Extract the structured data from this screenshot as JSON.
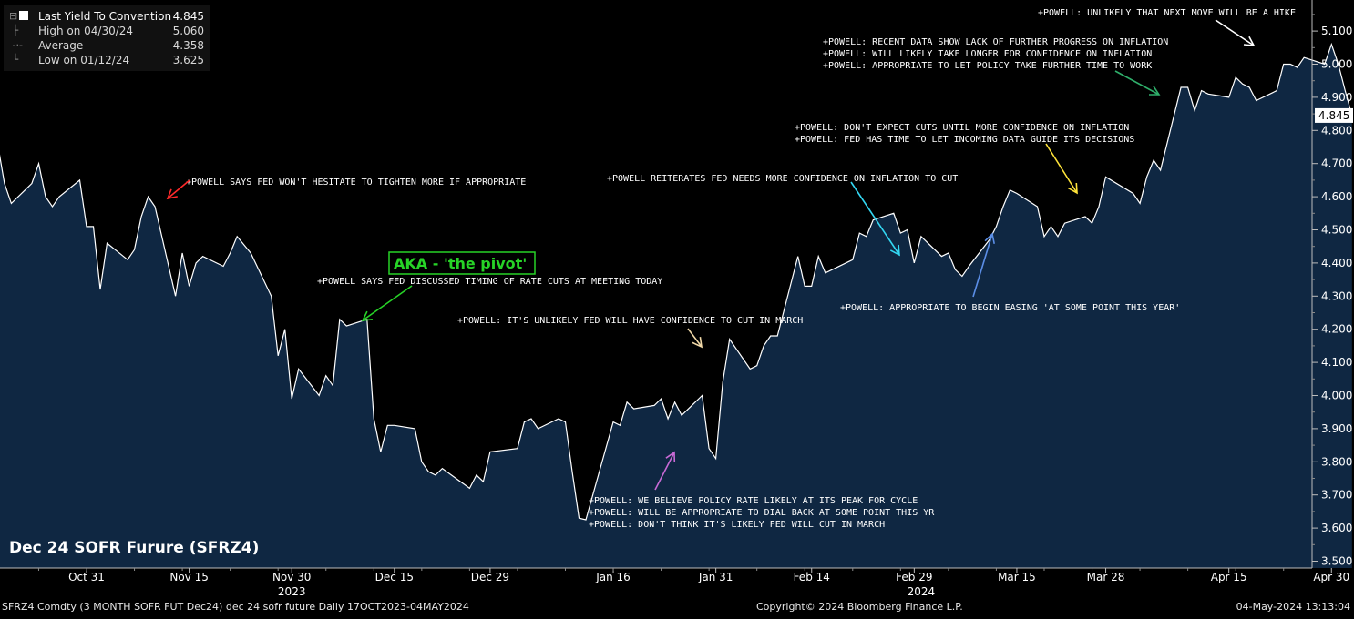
{
  "legend": {
    "main": {
      "label": "Last Yield To Convention",
      "value": "4.845"
    },
    "high": {
      "label": "High on 04/30/24",
      "value": "5.060"
    },
    "average": {
      "label": "Average",
      "value": "4.358"
    },
    "low": {
      "label": "Low on 01/12/24",
      "value": "3.625"
    }
  },
  "chart_title": "Dec 24 SOFR Furure (SFRZ4)",
  "footer": {
    "left": "SFRZ4 Comdty (3 MONTH SOFR FUT  Dec24) dec 24 sofr future  Daily 17OCT2023-04MAY2024",
    "center": "Copyright© 2024 Bloomberg Finance L.P.",
    "right": "04-May-2024 13:13:04"
  },
  "colors": {
    "background": "#000000",
    "area_fill": "#0f2742",
    "line": "#ffffff",
    "pivot_green": "#27d327"
  },
  "chart_data": {
    "type": "area",
    "title": "Dec 24 SOFR Furure (SFRZ4)",
    "y_tick_labels": [
      "3.500",
      "3.600",
      "3.700",
      "3.800",
      "3.900",
      "4.000",
      "4.100",
      "4.200",
      "4.300",
      "4.400",
      "4.500",
      "4.600",
      "4.700",
      "4.800",
      "4.900",
      "5.000",
      "5.100"
    ],
    "ylim": [
      3.47,
      5.27
    ],
    "x_tick_labels": [
      "Oct 31",
      "Nov 15",
      "Nov 30",
      "Dec 15",
      "Dec 29",
      "Jan 16",
      "Jan 31",
      "Feb 14",
      "Feb 29",
      "Mar 15",
      "Mar 28",
      "Apr 15",
      "Apr 30"
    ],
    "x_tick_dates": [
      "2023-10-31",
      "2023-11-15",
      "2023-11-30",
      "2023-12-15",
      "2023-12-29",
      "2024-01-16",
      "2024-01-31",
      "2024-02-14",
      "2024-02-29",
      "2024-03-15",
      "2024-03-28",
      "2024-04-15",
      "2024-04-30"
    ],
    "year_labels": [
      {
        "label": "2023",
        "date": "2023-11-30"
      },
      {
        "label": "2024",
        "date": "2024-03-01"
      }
    ],
    "last_value_label": "4.845",
    "grid": false,
    "series": [
      {
        "values": [
          [
            "2023-10-16",
            4.79
          ],
          [
            "2023-10-17",
            4.81
          ],
          [
            "2023-10-18",
            4.76
          ],
          [
            "2023-10-19",
            4.64
          ],
          [
            "2023-10-20",
            4.58
          ],
          [
            "2023-10-23",
            4.64
          ],
          [
            "2023-10-24",
            4.7
          ],
          [
            "2023-10-25",
            4.6
          ],
          [
            "2023-10-26",
            4.57
          ],
          [
            "2023-10-27",
            4.6
          ],
          [
            "2023-10-30",
            4.65
          ],
          [
            "2023-10-31",
            4.51
          ],
          [
            "2023-11-01",
            4.51
          ],
          [
            "2023-11-02",
            4.32
          ],
          [
            "2023-11-03",
            4.46
          ],
          [
            "2023-11-06",
            4.41
          ],
          [
            "2023-11-07",
            4.44
          ],
          [
            "2023-11-08",
            4.54
          ],
          [
            "2023-11-09",
            4.6
          ],
          [
            "2023-11-10",
            4.57
          ],
          [
            "2023-11-13",
            4.3
          ],
          [
            "2023-11-14",
            4.43
          ],
          [
            "2023-11-15",
            4.33
          ],
          [
            "2023-11-16",
            4.4
          ],
          [
            "2023-11-17",
            4.42
          ],
          [
            "2023-11-20",
            4.39
          ],
          [
            "2023-11-21",
            4.43
          ],
          [
            "2023-11-22",
            4.48
          ],
          [
            "2023-11-24",
            4.43
          ],
          [
            "2023-11-27",
            4.3
          ],
          [
            "2023-11-28",
            4.12
          ],
          [
            "2023-11-29",
            4.2
          ],
          [
            "2023-11-30",
            3.99
          ],
          [
            "2023-12-01",
            4.08
          ],
          [
            "2023-12-04",
            4.0
          ],
          [
            "2023-12-05",
            4.06
          ],
          [
            "2023-12-06",
            4.03
          ],
          [
            "2023-12-07",
            4.23
          ],
          [
            "2023-12-08",
            4.21
          ],
          [
            "2023-12-11",
            4.23
          ],
          [
            "2023-12-12",
            3.93
          ],
          [
            "2023-12-13",
            3.83
          ],
          [
            "2023-12-14",
            3.91
          ],
          [
            "2023-12-15",
            3.91
          ],
          [
            "2023-12-18",
            3.9
          ],
          [
            "2023-12-19",
            3.8
          ],
          [
            "2023-12-20",
            3.77
          ],
          [
            "2023-12-21",
            3.76
          ],
          [
            "2023-12-22",
            3.78
          ],
          [
            "2023-12-26",
            3.72
          ],
          [
            "2023-12-27",
            3.76
          ],
          [
            "2023-12-28",
            3.74
          ],
          [
            "2023-12-29",
            3.83
          ],
          [
            "2024-01-02",
            3.84
          ],
          [
            "2024-01-03",
            3.92
          ],
          [
            "2024-01-04",
            3.93
          ],
          [
            "2024-01-05",
            3.9
          ],
          [
            "2024-01-08",
            3.93
          ],
          [
            "2024-01-09",
            3.92
          ],
          [
            "2024-01-10",
            3.77
          ],
          [
            "2024-01-11",
            3.63
          ],
          [
            "2024-01-12",
            3.625
          ],
          [
            "2024-01-16",
            3.92
          ],
          [
            "2024-01-17",
            3.91
          ],
          [
            "2024-01-18",
            3.98
          ],
          [
            "2024-01-19",
            3.96
          ],
          [
            "2024-01-22",
            3.97
          ],
          [
            "2024-01-23",
            3.99
          ],
          [
            "2024-01-24",
            3.93
          ],
          [
            "2024-01-25",
            3.98
          ],
          [
            "2024-01-26",
            3.94
          ],
          [
            "2024-01-29",
            4.0
          ],
          [
            "2024-01-30",
            3.84
          ],
          [
            "2024-01-31",
            3.81
          ],
          [
            "2024-02-01",
            4.04
          ],
          [
            "2024-02-02",
            4.17
          ],
          [
            "2024-02-05",
            4.08
          ],
          [
            "2024-02-06",
            4.09
          ],
          [
            "2024-02-07",
            4.15
          ],
          [
            "2024-02-08",
            4.18
          ],
          [
            "2024-02-09",
            4.18
          ],
          [
            "2024-02-12",
            4.42
          ],
          [
            "2024-02-13",
            4.33
          ],
          [
            "2024-02-14",
            4.33
          ],
          [
            "2024-02-15",
            4.42
          ],
          [
            "2024-02-16",
            4.37
          ],
          [
            "2024-02-20",
            4.41
          ],
          [
            "2024-02-21",
            4.49
          ],
          [
            "2024-02-22",
            4.48
          ],
          [
            "2024-02-23",
            4.53
          ],
          [
            "2024-02-26",
            4.55
          ],
          [
            "2024-02-27",
            4.49
          ],
          [
            "2024-02-28",
            4.5
          ],
          [
            "2024-02-29",
            4.4
          ],
          [
            "2024-03-01",
            4.48
          ],
          [
            "2024-03-04",
            4.42
          ],
          [
            "2024-03-05",
            4.43
          ],
          [
            "2024-03-06",
            4.38
          ],
          [
            "2024-03-07",
            4.36
          ],
          [
            "2024-03-08",
            4.39
          ],
          [
            "2024-03-11",
            4.47
          ],
          [
            "2024-03-12",
            4.51
          ],
          [
            "2024-03-13",
            4.57
          ],
          [
            "2024-03-14",
            4.62
          ],
          [
            "2024-03-15",
            4.61
          ],
          [
            "2024-03-18",
            4.57
          ],
          [
            "2024-03-19",
            4.48
          ],
          [
            "2024-03-20",
            4.51
          ],
          [
            "2024-03-21",
            4.48
          ],
          [
            "2024-03-22",
            4.52
          ],
          [
            "2024-03-25",
            4.54
          ],
          [
            "2024-03-26",
            4.52
          ],
          [
            "2024-03-27",
            4.57
          ],
          [
            "2024-03-28",
            4.66
          ],
          [
            "2024-04-01",
            4.61
          ],
          [
            "2024-04-02",
            4.58
          ],
          [
            "2024-04-03",
            4.66
          ],
          [
            "2024-04-04",
            4.71
          ],
          [
            "2024-04-05",
            4.68
          ],
          [
            "2024-04-08",
            4.93
          ],
          [
            "2024-04-09",
            4.93
          ],
          [
            "2024-04-10",
            4.86
          ],
          [
            "2024-04-11",
            4.92
          ],
          [
            "2024-04-12",
            4.91
          ],
          [
            "2024-04-15",
            4.9
          ],
          [
            "2024-04-16",
            4.96
          ],
          [
            "2024-04-17",
            4.94
          ],
          [
            "2024-04-18",
            4.93
          ],
          [
            "2024-04-19",
            4.89
          ],
          [
            "2024-04-22",
            4.92
          ],
          [
            "2024-04-23",
            5.0
          ],
          [
            "2024-04-24",
            5.0
          ],
          [
            "2024-04-25",
            4.99
          ],
          [
            "2024-04-26",
            5.02
          ],
          [
            "2024-04-29",
            5.0
          ],
          [
            "2024-04-30",
            5.06
          ],
          [
            "2024-05-01",
            5.0
          ],
          [
            "2024-05-02",
            4.92
          ],
          [
            "2024-05-03",
            4.845
          ]
        ]
      }
    ],
    "annotations": [
      {
        "lines": [
          "+POWELL SAYS FED WON'T HESITATE TO TIGHTEN MORE IF APPROPRIATE"
        ],
        "point_date": "2023-11-09",
        "point_value": 4.6,
        "arrow_color": "#ff2a2a"
      },
      {
        "lines": [
          "+POWELL SAYS FED DISCUSSED TIMING OF RATE CUTS AT MEETING TODAY"
        ],
        "point_date": "2023-12-13",
        "point_value": 4.23,
        "arrow_color": "#27d327"
      },
      {
        "lines": [
          "AKA - 'the pivot'"
        ],
        "boxed": true,
        "color": "#27d327"
      },
      {
        "lines": [
          "+POWELL: IT'S UNLIKELY FED WILL HAVE CONFIDENCE TO CUT IN MARCH"
        ],
        "point_date": "2024-02-01",
        "point_value": 4.17,
        "arrow_color": "#f1d9a8"
      },
      {
        "lines": [
          "+POWELL: WE BELIEVE POLICY RATE LIKELY AT ITS PEAK FOR CYCLE",
          "+POWELL: WILL BE APPROPRIATE TO DIAL BACK AT SOME POINT THIS YR",
          "+POWELL: DON'T THINK IT'S LIKELY FED WILL CUT IN MARCH"
        ],
        "point_date": "2024-01-31",
        "point_value": 3.83,
        "arrow_color": "#c86ad6"
      },
      {
        "lines": [
          "+POWELL REITERATES FED NEEDS MORE CONFIDENCE ON INFLATION TO CUT"
        ],
        "point_date": "2024-03-07",
        "point_value": 4.43,
        "arrow_color": "#33d7f2"
      },
      {
        "lines": [
          "+POWELL: DON'T EXPECT CUTS UNTIL MORE CONFIDENCE ON INFLATION",
          "+POWELL: FED HAS TIME TO LET INCOMING DATA GUIDE ITS DECISIONS"
        ],
        "point_date": "2024-04-02",
        "point_value": 4.6,
        "arrow_color": "#ffe43a"
      },
      {
        "lines": [
          "+POWELL: APPROPRIATE TO BEGIN EASING 'AT SOME POINT THIS YEAR'"
        ],
        "point_date": "2024-03-21",
        "point_value": 4.5,
        "arrow_color": "#5b8ee6"
      },
      {
        "lines": [
          "+POWELL: RECENT DATA SHOW LACK OF FURTHER PROGRESS ON INFLATION",
          "+POWELL: WILL LIKELY TAKE LONGER FOR CONFIDENCE ON INFLATION",
          "+POWELL: APPROPRIATE TO LET POLICY TAKE FURTHER TIME TO WORK"
        ],
        "point_date": "2024-04-16",
        "point_value": 4.92,
        "arrow_color": "#2fae6a"
      },
      {
        "lines": [
          "+POWELL: UNLIKELY THAT NEXT MOVE WILL BE A HIKE"
        ],
        "point_date": "2024-05-01",
        "point_value": 5.06,
        "arrow_color": "#ffffff"
      }
    ]
  }
}
